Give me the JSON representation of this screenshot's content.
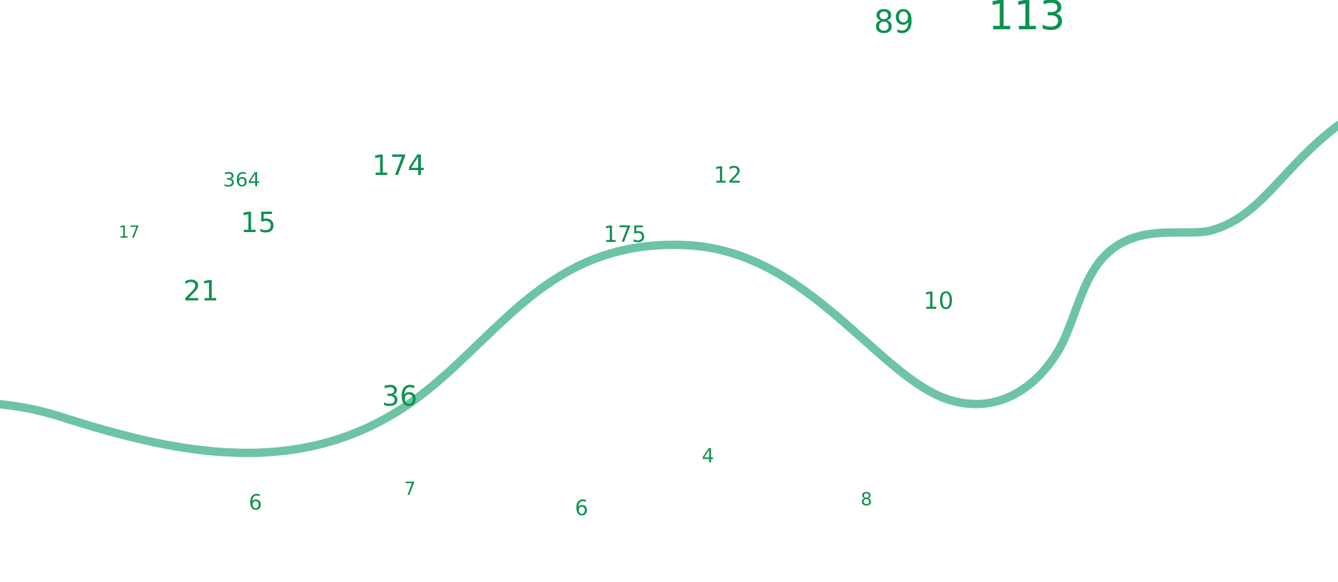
{
  "colors": {
    "number": "#0e9150",
    "curve": "#6cc4a4",
    "background": "#ffffff"
  },
  "numbers": [
    "89",
    "113",
    "364",
    "174",
    "12",
    "17",
    "15",
    "175",
    "21",
    "10",
    "36",
    "4",
    "7",
    "6",
    "6",
    "8"
  ]
}
